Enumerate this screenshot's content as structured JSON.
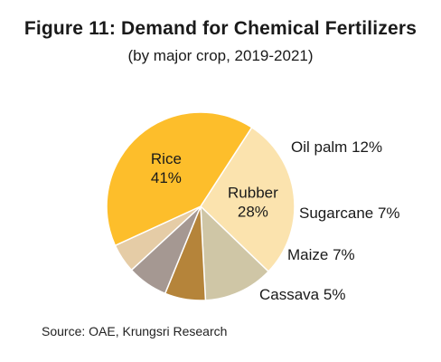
{
  "chart_data": {
    "type": "pie",
    "title": "Figure 11: Demand for Chemical Fertilizers",
    "subtitle": "(by major crop, 2019-2021)",
    "start_angle_deg": 33,
    "slices": [
      {
        "label": "Rubber",
        "value": 28,
        "value_text": "28%",
        "color": "#FBE3AE",
        "label_style": "inside"
      },
      {
        "label": "Oil palm",
        "value": 12,
        "value_text": "12%",
        "color": "#CFC6A6",
        "label_style": "outside"
      },
      {
        "label": "Sugarcane",
        "value": 7,
        "value_text": "7%",
        "color": "#B5843A",
        "label_style": "outside"
      },
      {
        "label": "Maize",
        "value": 7,
        "value_text": "7%",
        "color": "#A59892",
        "label_style": "outside"
      },
      {
        "label": "Cassava",
        "value": 5,
        "value_text": "5%",
        "color": "#E5CCA6",
        "label_style": "outside"
      },
      {
        "label": "Rice",
        "value": 41,
        "value_text": "41%",
        "color": "#FDBE2B",
        "label_style": "inside"
      }
    ],
    "source": "Source: OAE, Krungsri Research"
  }
}
